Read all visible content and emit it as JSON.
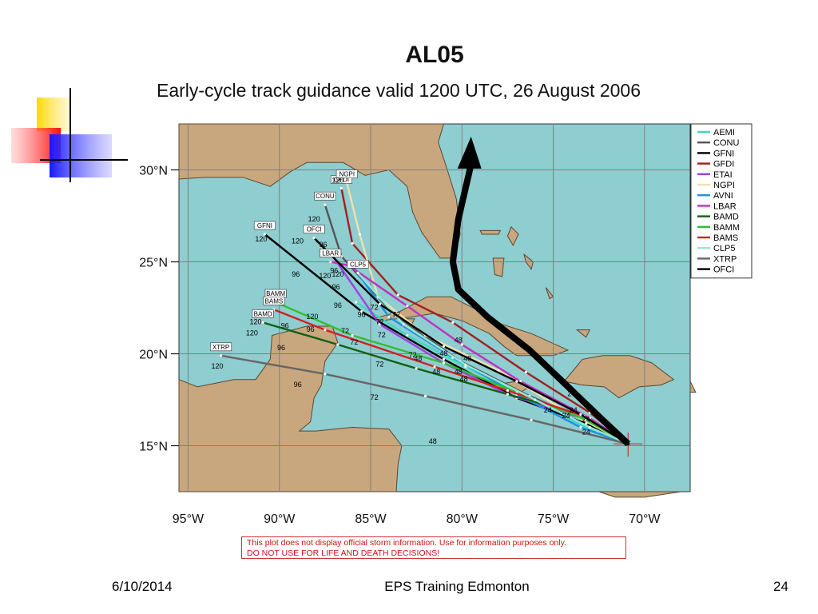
{
  "slide": {
    "title": "AL05",
    "subtitle": "Early-cycle track guidance valid 1200 UTC, 26 August 2006",
    "disclaimer_line1": "This plot does not display official storm information. Use for information purposes only.",
    "disclaimer_line2": "DO NOT USE FOR LIFE AND DEATH DECISIONS!",
    "footer_date": "6/10/2014",
    "footer_center": "EPS Training Edmonton",
    "footer_page": "24"
  },
  "colors": {
    "sea": "#8ecdd0",
    "land": "#c9a77e",
    "land_edge": "#5a4632",
    "grid": "#7f7f7f",
    "arrow": "#000000"
  },
  "chart_data": {
    "type": "line",
    "title": "AL05",
    "subtitle": "Early-cycle track guidance valid 1200 UTC, 26 August 2006",
    "xlabel": "",
    "ylabel": "",
    "xlim": [
      -95.5,
      -67.5
    ],
    "ylim": [
      12.5,
      32.5
    ],
    "x_ticks": [
      -95,
      -90,
      -85,
      -80,
      -75,
      -70
    ],
    "x_tick_labels": [
      "95°W",
      "90°W",
      "85°W",
      "80°W",
      "75°W",
      "70°W"
    ],
    "y_ticks": [
      15,
      20,
      25,
      30
    ],
    "y_tick_labels": [
      "15°N",
      "20°N",
      "25°N",
      "30°N"
    ],
    "grid": true,
    "legend_position": "right",
    "storm_origin": {
      "lon": -70.9,
      "lat": 15.1
    },
    "series": [
      {
        "name": "AEMI",
        "color": "#40d8c0",
        "lon": [
          -70.9,
          -72.6,
          -76.0,
          -79.8,
          -83.0,
          -85.8
        ],
        "lat": [
          15.1,
          15.7,
          17.4,
          19.3,
          21.0,
          22.8
        ],
        "end_label": ""
      },
      {
        "name": "CONU",
        "color": "#555555",
        "lon": [
          -70.9,
          -73.0,
          -76.3,
          -80.1,
          -83.8,
          -86.6,
          -87.5
        ],
        "lat": [
          15.1,
          16.3,
          17.7,
          19.6,
          22.2,
          25.3,
          28.1
        ],
        "end_label": "CONU"
      },
      {
        "name": "GFNI",
        "color": "#000000",
        "lon": [
          -70.9,
          -73.2,
          -77.0,
          -81.0,
          -85.5,
          -90.8
        ],
        "lat": [
          15.1,
          16.2,
          17.6,
          19.7,
          22.3,
          26.5
        ],
        "end_label": "GFNI"
      },
      {
        "name": "GFDI",
        "color": "#a02020",
        "lon": [
          -70.9,
          -73.0,
          -76.5,
          -80.5,
          -83.5,
          -86.0,
          -86.6
        ],
        "lat": [
          15.1,
          16.8,
          19.0,
          21.7,
          23.2,
          26.0,
          29.0
        ],
        "end_label": "GFDI"
      },
      {
        "name": "ETAI",
        "color": "#a040e0",
        "lon": [
          -70.9,
          -73.5,
          -77.5,
          -81.0,
          -84.5,
          -87.0
        ],
        "lat": [
          15.1,
          16.5,
          17.8,
          19.5,
          21.6,
          25.2
        ],
        "end_label": ""
      },
      {
        "name": "NGPI",
        "color": "#f0e0b0",
        "lon": [
          -70.9,
          -74.5,
          -78.0,
          -82.0,
          -84.6,
          -85.6,
          -86.3
        ],
        "lat": [
          15.1,
          17.0,
          19.1,
          21.0,
          23.1,
          26.5,
          29.3
        ],
        "end_label": "NGPI"
      },
      {
        "name": "AVNI",
        "color": "#2090e0",
        "lon": [
          -70.9,
          -73.5,
          -77.0,
          -80.5,
          -84.0,
          -86.0
        ],
        "lat": [
          15.1,
          16.0,
          17.8,
          19.8,
          22.0,
          24.8
        ],
        "end_label": ""
      },
      {
        "name": "LBAR",
        "color": "#c030c0",
        "lon": [
          -70.9,
          -73.0,
          -76.8,
          -80.0,
          -83.0,
          -86.2,
          -87.2
        ],
        "lat": [
          15.1,
          16.5,
          18.5,
          20.5,
          22.6,
          24.8,
          25.0
        ],
        "end_label": "LBAR"
      },
      {
        "name": "BAMD",
        "color": "#106010",
        "lon": [
          -70.9,
          -73.5,
          -77.5,
          -82.5,
          -86.8,
          -90.9
        ],
        "lat": [
          15.1,
          16.7,
          17.8,
          19.2,
          20.5,
          21.7
        ],
        "end_label": "BAMD"
      },
      {
        "name": "BAMM",
        "color": "#30c030",
        "lon": [
          -70.9,
          -73.2,
          -77.0,
          -81.0,
          -86.0,
          -90.2
        ],
        "lat": [
          15.1,
          16.4,
          17.9,
          19.5,
          21.0,
          22.8
        ],
        "end_label": "BAMM"
      },
      {
        "name": "BAMS",
        "color": "#d02020",
        "lon": [
          -70.9,
          -73.3,
          -77.5,
          -81.5,
          -87.5,
          -90.3
        ],
        "lat": [
          15.1,
          16.6,
          18.0,
          19.3,
          21.3,
          22.4
        ],
        "end_label": "BAMS"
      },
      {
        "name": "CLP5",
        "color": "#90e8d8",
        "lon": [
          -70.9,
          -73.0,
          -76.0,
          -79.8,
          -83.2,
          -85.7
        ],
        "lat": [
          15.1,
          16.0,
          17.5,
          19.4,
          21.6,
          24.4
        ],
        "end_label": "CLP5"
      },
      {
        "name": "XTRP",
        "color": "#666666",
        "lon": [
          -70.9,
          -76.2,
          -82.0,
          -87.5,
          -93.2
        ],
        "lat": [
          15.1,
          16.4,
          17.7,
          18.9,
          19.9
        ],
        "end_label": "XTRP"
      },
      {
        "name": "OFCI",
        "color": "#000000",
        "lon": [
          -70.9,
          -73.5,
          -77.0,
          -81.0,
          -84.5,
          -88.1
        ],
        "lat": [
          15.1,
          16.7,
          18.5,
          20.4,
          22.7,
          26.3
        ],
        "end_label": "OFCI"
      }
    ],
    "hour_labels": [
      {
        "text": "24",
        "lon": -73.2,
        "lat": 16.3
      },
      {
        "text": "24",
        "lon": -73.2,
        "lat": 15.6
      },
      {
        "text": "24",
        "lon": -73.9,
        "lat": 16.8
      },
      {
        "text": "24",
        "lon": -75.3,
        "lat": 16.8
      },
      {
        "text": "24",
        "lon": -74.0,
        "lat": 17.7
      },
      {
        "text": "24",
        "lon": -74.3,
        "lat": 16.5
      },
      {
        "text": "48",
        "lon": -80.2,
        "lat": 20.6
      },
      {
        "text": "48",
        "lon": -79.9,
        "lat": 18.5
      },
      {
        "text": "48",
        "lon": -80.2,
        "lat": 18.9
      },
      {
        "text": "48",
        "lon": -81.0,
        "lat": 19.9
      },
      {
        "text": "48",
        "lon": -81.4,
        "lat": 18.9
      },
      {
        "text": "48",
        "lon": -82.4,
        "lat": 19.6
      },
      {
        "text": "48",
        "lon": -81.6,
        "lat": 15.1
      },
      {
        "text": "48",
        "lon": -79.7,
        "lat": 19.6
      },
      {
        "text": "72",
        "lon": -84.5,
        "lat": 21.6
      },
      {
        "text": "72",
        "lon": -84.4,
        "lat": 20.9
      },
      {
        "text": "72",
        "lon": -83.6,
        "lat": 22.0
      },
      {
        "text": "72",
        "lon": -84.8,
        "lat": 22.4
      },
      {
        "text": "72",
        "lon": -85.9,
        "lat": 20.5
      },
      {
        "text": "72",
        "lon": -84.5,
        "lat": 19.3
      },
      {
        "text": "72",
        "lon": -86.4,
        "lat": 21.1
      },
      {
        "text": "72",
        "lon": -82.7,
        "lat": 19.8
      },
      {
        "text": "72",
        "lon": -84.8,
        "lat": 17.5
      },
      {
        "text": "96",
        "lon": -87.6,
        "lat": 25.8
      },
      {
        "text": "96",
        "lon": -89.1,
        "lat": 24.2
      },
      {
        "text": "96",
        "lon": -86.8,
        "lat": 22.5
      },
      {
        "text": "96",
        "lon": -88.3,
        "lat": 21.2
      },
      {
        "text": "96",
        "lon": -89.7,
        "lat": 21.4
      },
      {
        "text": "96",
        "lon": -89.9,
        "lat": 20.2
      },
      {
        "text": "96",
        "lon": -85.5,
        "lat": 22.0
      },
      {
        "text": "96",
        "lon": -86.9,
        "lat": 23.5
      },
      {
        "text": "96",
        "lon": -89.0,
        "lat": 18.2
      },
      {
        "text": "96",
        "lon": -87.0,
        "lat": 24.4
      },
      {
        "text": "120",
        "lon": -91.0,
        "lat": 26.1
      },
      {
        "text": "120",
        "lon": -89.0,
        "lat": 26.0
      },
      {
        "text": "120",
        "lon": -91.5,
        "lat": 21.0
      },
      {
        "text": "120",
        "lon": -88.1,
        "lat": 27.2
      },
      {
        "text": "120",
        "lon": -86.8,
        "lat": 29.3
      },
      {
        "text": "120",
        "lon": -91.3,
        "lat": 21.6
      },
      {
        "text": "120",
        "lon": -87.5,
        "lat": 24.1
      },
      {
        "text": "120",
        "lon": -93.4,
        "lat": 19.2
      },
      {
        "text": "120",
        "lon": -86.8,
        "lat": 24.2
      },
      {
        "text": "120",
        "lon": -88.2,
        "lat": 21.9
      }
    ],
    "annotation_arrow": {
      "lon": [
        -70.9,
        -72.4,
        -74.5,
        -76.3,
        -78.6,
        -80.2,
        -80.5,
        -80.2,
        -79.5
      ],
      "lat": [
        15.1,
        16.5,
        18.5,
        20.2,
        22.0,
        23.5,
        25.0,
        27.3,
        30.3
      ],
      "head_lon": -79.5,
      "head_lat": 31.2
    }
  }
}
